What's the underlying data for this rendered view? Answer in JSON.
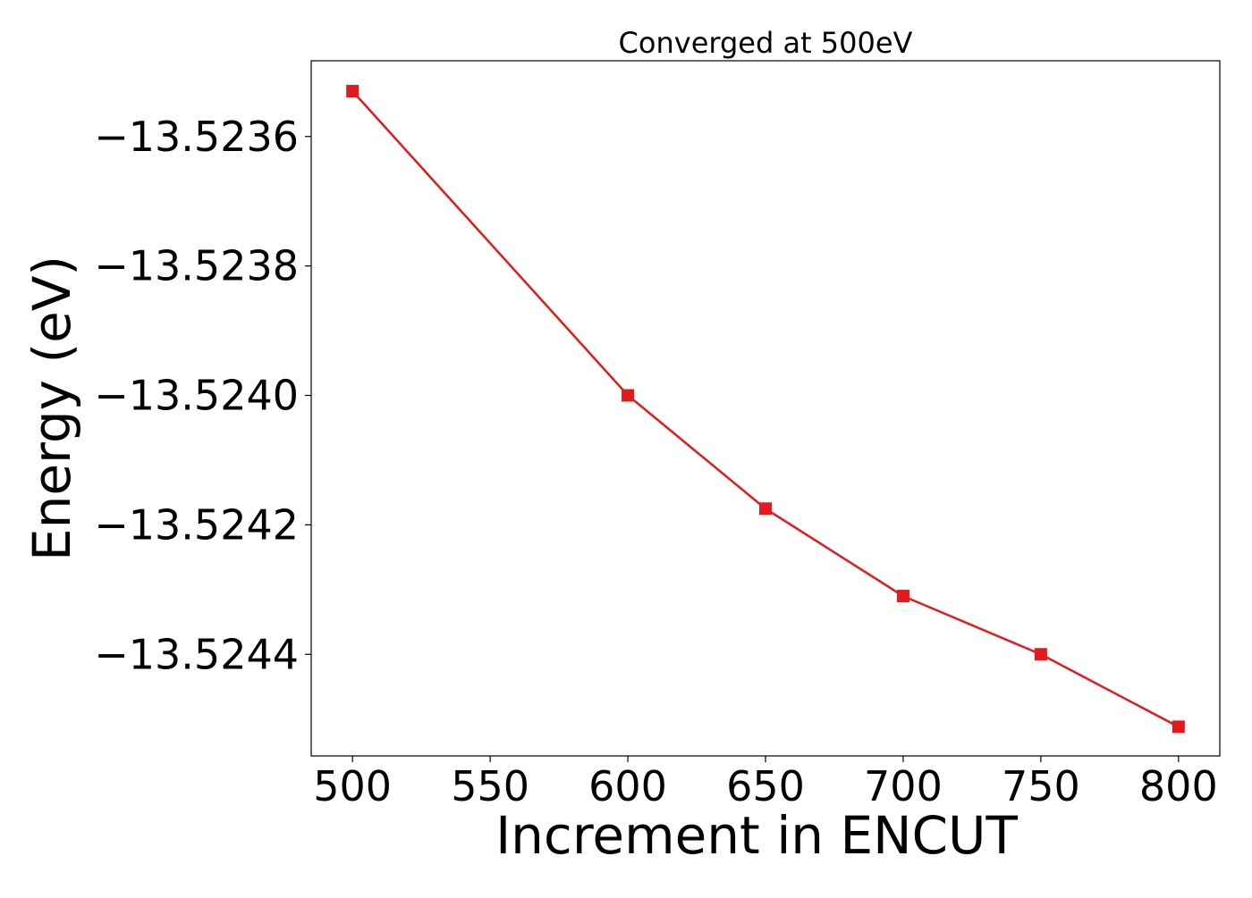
{
  "chart_data": {
    "type": "line",
    "title": "Converged at 500eV",
    "xlabel": "Increment in ENCUT",
    "ylabel": "Energy (eV)",
    "x": [
      500,
      600,
      650,
      700,
      750,
      800
    ],
    "series": [
      {
        "values": [
          -13.52353,
          -13.524,
          -13.524175,
          -13.52431,
          -13.5244,
          -13.524512
        ],
        "color": "#e31a1c",
        "marker": "square"
      }
    ],
    "xlim": [
      485,
      815
    ],
    "ylim": [
      -13.524557,
      -13.523483
    ],
    "xticks": [
      500,
      550,
      600,
      650,
      700,
      750,
      800
    ],
    "xtick_labels": [
      "500",
      "550",
      "600",
      "650",
      "700",
      "750",
      "800"
    ],
    "yticks": [
      -13.5236,
      -13.5238,
      -13.524,
      -13.5242,
      -13.5244
    ],
    "ytick_labels": [
      "−13.5236",
      "−13.5238",
      "−13.5240",
      "−13.5242",
      "−13.5244"
    ],
    "grid": false,
    "legend": false
  }
}
